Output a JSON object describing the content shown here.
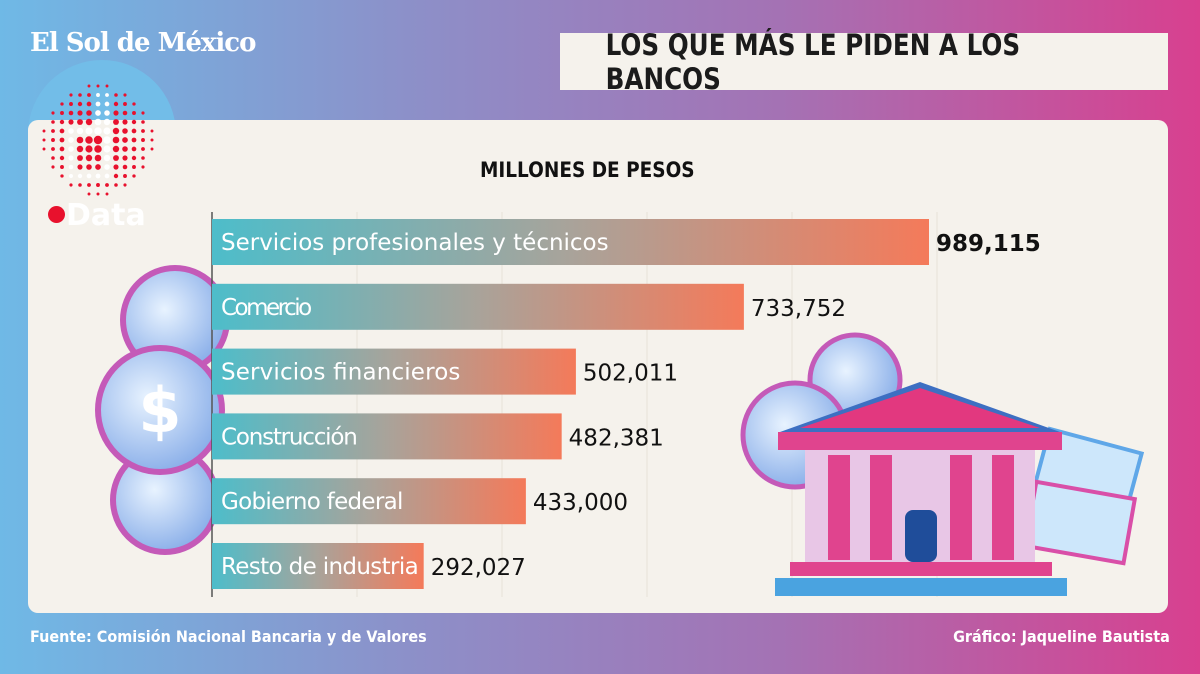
{
  "brand": {
    "name": "El Sol de México",
    "sub_brand": "Data"
  },
  "colors": {
    "bar_start": "#4dbdca",
    "bar_end": "#f47a5a",
    "card": "#f5f2ec",
    "accent_red": "#e8112d"
  },
  "chart_data": {
    "type": "bar",
    "orientation": "horizontal",
    "title": "LOS QUE MÁS LE PIDEN A LOS BANCOS",
    "subtitle": "MILLONES DE PESOS",
    "categories": [
      "Servicios profesionales y técnicos",
      "Comercio",
      "Servicios financieros",
      "Construcción",
      "Gobierno federal",
      "Resto de industria"
    ],
    "values": [
      989115,
      733752,
      502011,
      482381,
      433000,
      292027
    ],
    "value_labels": [
      "989,115",
      "733,752",
      "502,011",
      "482,381",
      "433,000",
      "292,027"
    ],
    "grid": true,
    "xlim": [
      0,
      989115
    ]
  },
  "footer": {
    "source": "Fuente: Comisión Nacional Bancaria y de Valores",
    "credit": "Gráfico: Jaqueline Bautista"
  }
}
